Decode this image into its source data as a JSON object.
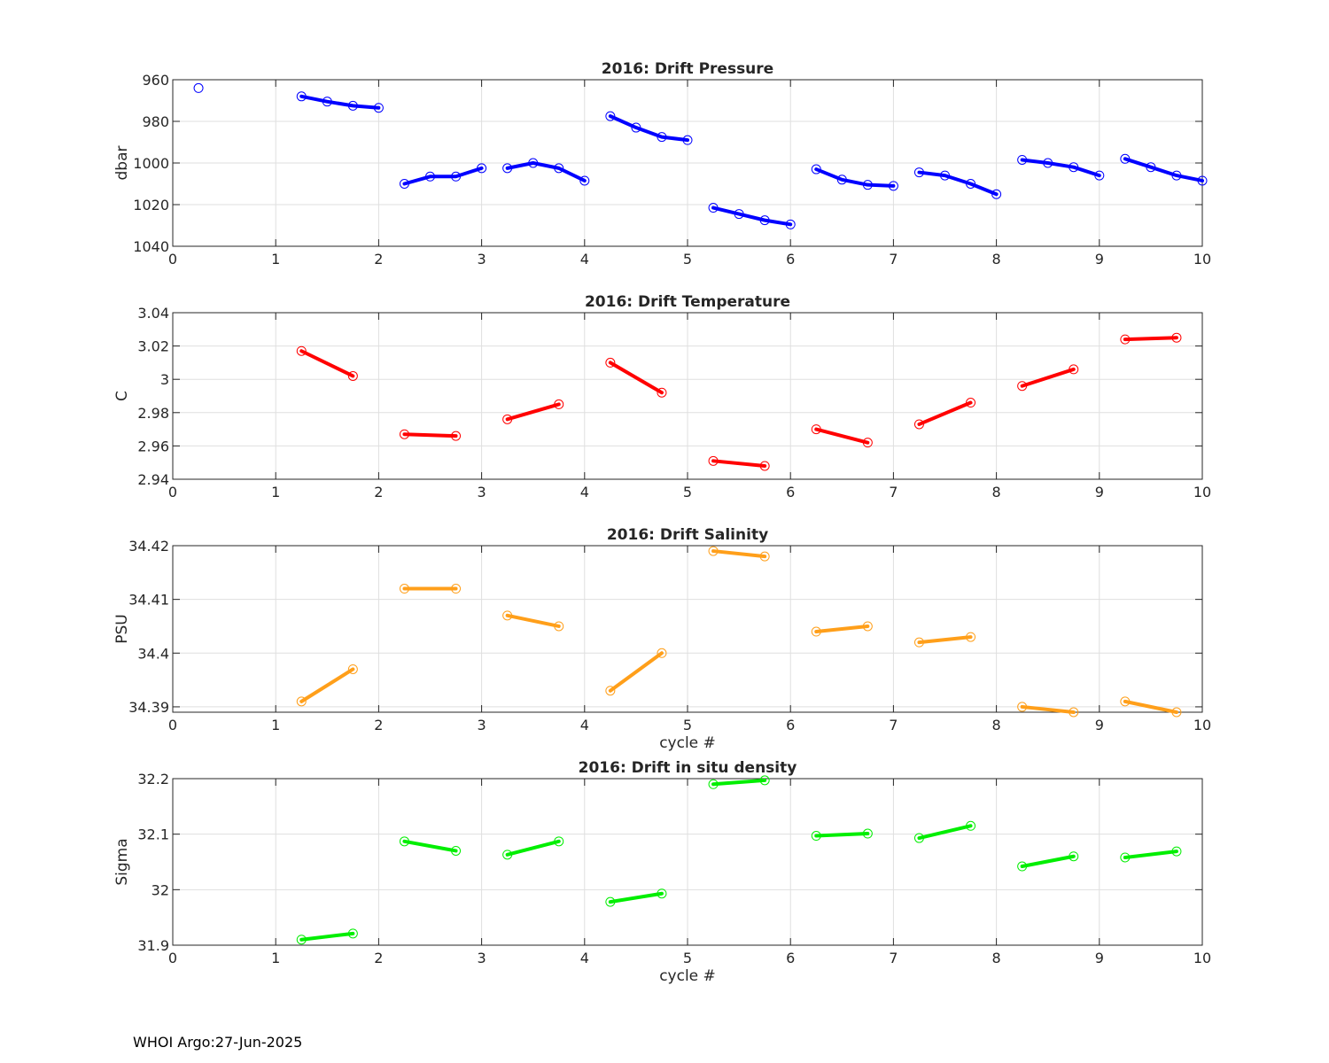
{
  "footer": {
    "text": "WHOI Argo:27-Jun-2025"
  },
  "chart_data": [
    {
      "type": "line",
      "title": "2016: Drift Pressure",
      "xlabel": "",
      "ylabel": "dbar",
      "xlim": [
        0,
        10
      ],
      "ylim": [
        960,
        1040
      ],
      "y_reversed": true,
      "xticks": [
        0,
        1,
        2,
        3,
        4,
        5,
        6,
        7,
        8,
        9,
        10
      ],
      "yticks": [
        960,
        980,
        1000,
        1020,
        1040
      ],
      "grid": true,
      "color": "#0000ff",
      "marker": "open-circle",
      "segments": [
        {
          "x": [
            0.25
          ],
          "y": [
            964
          ]
        },
        {
          "x": [
            1.25,
            1.5,
            1.75,
            2.0
          ],
          "y": [
            968,
            970.5,
            972.5,
            973.5
          ]
        },
        {
          "x": [
            2.25,
            2.5,
            2.75,
            3.0
          ],
          "y": [
            1010,
            1006.5,
            1006.5,
            1002.5
          ]
        },
        {
          "x": [
            3.25,
            3.5,
            3.75,
            4.0
          ],
          "y": [
            1002.5,
            1000,
            1002.5,
            1008.5
          ]
        },
        {
          "x": [
            4.25,
            4.5,
            4.75,
            5.0
          ],
          "y": [
            977.5,
            983,
            987.5,
            989
          ]
        },
        {
          "x": [
            5.25,
            5.5,
            5.75,
            6.0
          ],
          "y": [
            1021.5,
            1024.5,
            1027.5,
            1029.5
          ]
        },
        {
          "x": [
            6.25,
            6.5,
            6.75,
            7.0
          ],
          "y": [
            1003,
            1008,
            1010.5,
            1011
          ]
        },
        {
          "x": [
            7.25,
            7.5,
            7.75,
            8.0
          ],
          "y": [
            1004.5,
            1006,
            1010,
            1015
          ]
        },
        {
          "x": [
            8.25,
            8.5,
            8.75,
            9.0
          ],
          "y": [
            998.5,
            1000,
            1002,
            1006
          ]
        },
        {
          "x": [
            9.25,
            9.5,
            9.75,
            10.0
          ],
          "y": [
            998,
            1002,
            1006,
            1008.5
          ]
        }
      ]
    },
    {
      "type": "line",
      "title": "2016: Drift Temperature",
      "xlabel": "",
      "ylabel": "C",
      "xlim": [
        0,
        10
      ],
      "ylim": [
        2.94,
        3.04
      ],
      "y_reversed": false,
      "xticks": [
        0,
        1,
        2,
        3,
        4,
        5,
        6,
        7,
        8,
        9,
        10
      ],
      "yticks": [
        2.94,
        2.96,
        2.98,
        3.0,
        3.02,
        3.04
      ],
      "ytick_labels": [
        "2.94",
        "2.96",
        "2.98",
        "3",
        "3.02",
        "3.04"
      ],
      "grid": true,
      "color": "#ff0000",
      "marker": "open-circle",
      "segments": [
        {
          "x": [
            1.25,
            1.75
          ],
          "y": [
            3.017,
            3.002
          ]
        },
        {
          "x": [
            2.25,
            2.75
          ],
          "y": [
            2.967,
            2.966
          ]
        },
        {
          "x": [
            3.25,
            3.75
          ],
          "y": [
            2.976,
            2.985
          ]
        },
        {
          "x": [
            4.25,
            4.75
          ],
          "y": [
            3.01,
            2.992
          ]
        },
        {
          "x": [
            5.25,
            5.75
          ],
          "y": [
            2.951,
            2.948
          ]
        },
        {
          "x": [
            6.25,
            6.75
          ],
          "y": [
            2.97,
            2.962
          ]
        },
        {
          "x": [
            7.25,
            7.75
          ],
          "y": [
            2.973,
            2.986
          ]
        },
        {
          "x": [
            8.25,
            8.75
          ],
          "y": [
            2.996,
            3.006
          ]
        },
        {
          "x": [
            9.25,
            9.75
          ],
          "y": [
            3.024,
            3.025
          ]
        }
      ]
    },
    {
      "type": "line",
      "title": "2016: Drift Salinity",
      "xlabel": "cycle #",
      "ylabel": "PSU",
      "xlim": [
        0,
        10
      ],
      "ylim": [
        34.389,
        34.42
      ],
      "y_reversed": false,
      "xticks": [
        0,
        1,
        2,
        3,
        4,
        5,
        6,
        7,
        8,
        9,
        10
      ],
      "yticks": [
        34.39,
        34.4,
        34.41,
        34.42
      ],
      "ytick_labels": [
        "34.39",
        "34.4",
        "34.41",
        "34.42"
      ],
      "grid": true,
      "color": "#ff9f1a",
      "marker": "open-circle",
      "segments": [
        {
          "x": [
            1.25,
            1.75
          ],
          "y": [
            34.391,
            34.397
          ]
        },
        {
          "x": [
            2.25,
            2.75
          ],
          "y": [
            34.412,
            34.412
          ]
        },
        {
          "x": [
            3.25,
            3.75
          ],
          "y": [
            34.407,
            34.405
          ]
        },
        {
          "x": [
            4.25,
            4.75
          ],
          "y": [
            34.393,
            34.4
          ]
        },
        {
          "x": [
            5.25,
            5.75
          ],
          "y": [
            34.419,
            34.418
          ]
        },
        {
          "x": [
            6.25,
            6.75
          ],
          "y": [
            34.404,
            34.405
          ]
        },
        {
          "x": [
            7.25,
            7.75
          ],
          "y": [
            34.402,
            34.403
          ]
        },
        {
          "x": [
            8.25,
            8.75
          ],
          "y": [
            34.39,
            34.389
          ]
        },
        {
          "x": [
            9.25,
            9.75
          ],
          "y": [
            34.391,
            34.389
          ]
        }
      ]
    },
    {
      "type": "line",
      "title": "2016: Drift in situ density",
      "xlabel": "cycle #",
      "ylabel": "Sigma",
      "xlim": [
        0,
        10
      ],
      "ylim": [
        31.9,
        32.2
      ],
      "y_reversed": false,
      "xticks": [
        0,
        1,
        2,
        3,
        4,
        5,
        6,
        7,
        8,
        9,
        10
      ],
      "yticks": [
        31.9,
        32.0,
        32.1,
        32.2
      ],
      "ytick_labels": [
        "31.9",
        "32",
        "32.1",
        "32.2"
      ],
      "grid": true,
      "color": "#00ee00",
      "marker": "open-circle",
      "segments": [
        {
          "x": [
            1.25,
            1.75
          ],
          "y": [
            31.91,
            31.921
          ]
        },
        {
          "x": [
            2.25,
            2.75
          ],
          "y": [
            32.087,
            32.07
          ]
        },
        {
          "x": [
            3.25,
            3.75
          ],
          "y": [
            32.063,
            32.087
          ]
        },
        {
          "x": [
            4.25,
            4.75
          ],
          "y": [
            31.978,
            31.993
          ]
        },
        {
          "x": [
            5.25,
            5.75
          ],
          "y": [
            32.19,
            32.197
          ]
        },
        {
          "x": [
            6.25,
            6.75
          ],
          "y": [
            32.097,
            32.101
          ]
        },
        {
          "x": [
            7.25,
            7.75
          ],
          "y": [
            32.093,
            32.115
          ]
        },
        {
          "x": [
            8.25,
            8.75
          ],
          "y": [
            32.042,
            32.06
          ]
        },
        {
          "x": [
            9.25,
            9.75
          ],
          "y": [
            32.058,
            32.069
          ]
        }
      ]
    }
  ]
}
